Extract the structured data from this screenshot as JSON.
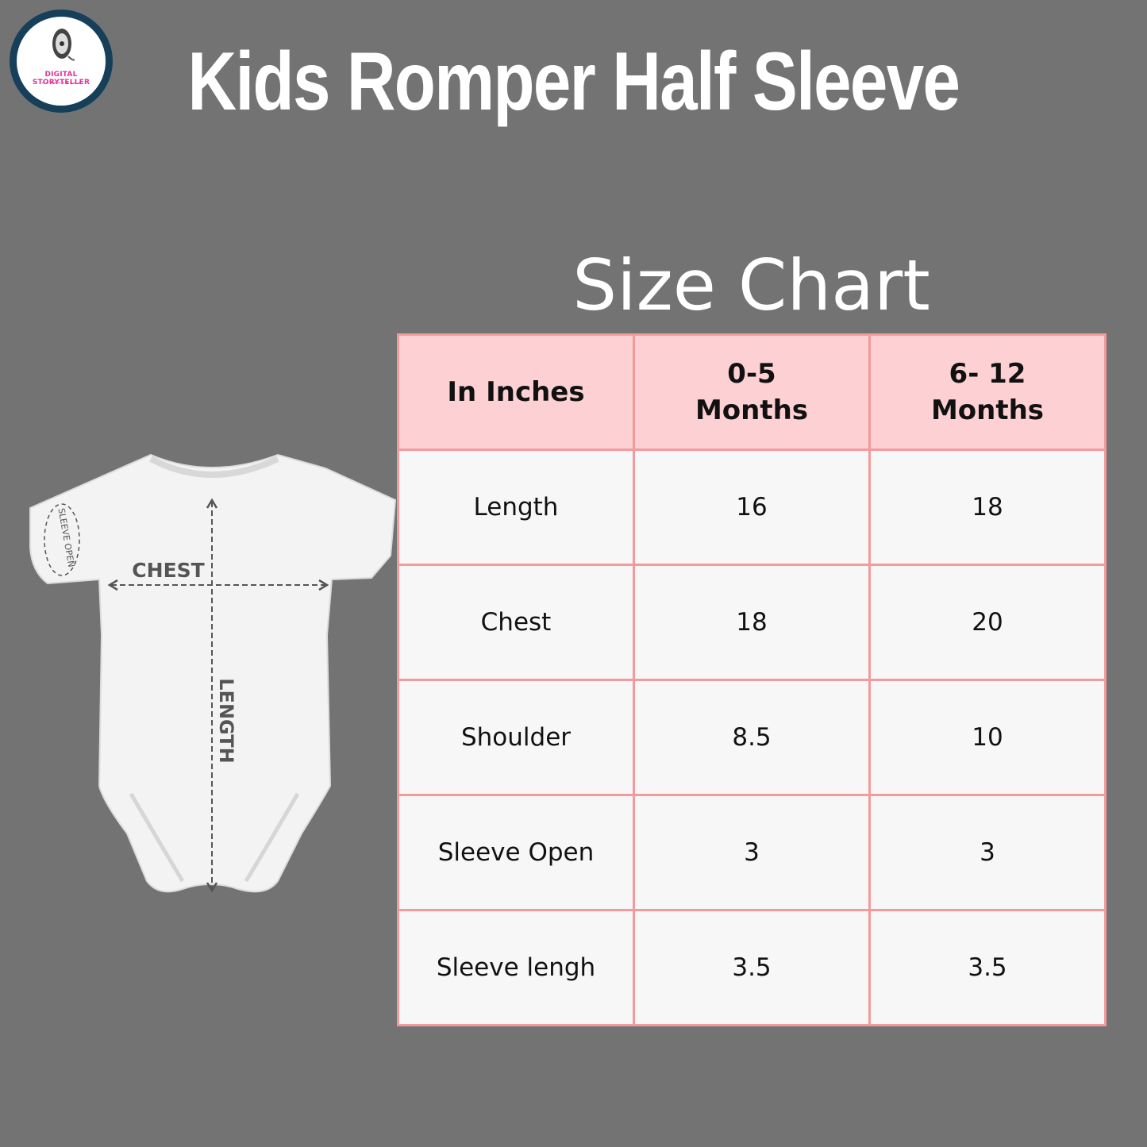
{
  "logo": {
    "text": "DIGITAL STORYTELLER",
    "border_color": "#16405a",
    "text_color": "#e0339a"
  },
  "title": "Kids Romper Half Sleeve",
  "subtitle": "Size Chart",
  "illustration": {
    "chest_label": "CHEST",
    "length_label": "LENGTH",
    "sleeve_label": "SLEEVE OPEN"
  },
  "table": {
    "headers": [
      {
        "line1": "In Inches",
        "line2": ""
      },
      {
        "line1": "0-5",
        "line2": "Months"
      },
      {
        "line1": "6- 12",
        "line2": "Months"
      }
    ],
    "rows": [
      {
        "label": "Length",
        "v1": "16",
        "v2": "18"
      },
      {
        "label": "Chest",
        "v1": "18",
        "v2": "20"
      },
      {
        "label": "Shoulder",
        "v1": "8.5",
        "v2": "10"
      },
      {
        "label": "Sleeve Open",
        "v1": "3",
        "v2": "3"
      },
      {
        "label": "Sleeve lengh",
        "v1": "3.5",
        "v2": "3.5"
      }
    ]
  },
  "colors": {
    "background": "#737373",
    "header_fill": "#fdd0d3",
    "border": "#f39a9c",
    "cell_fill": "#f7f7f7"
  }
}
